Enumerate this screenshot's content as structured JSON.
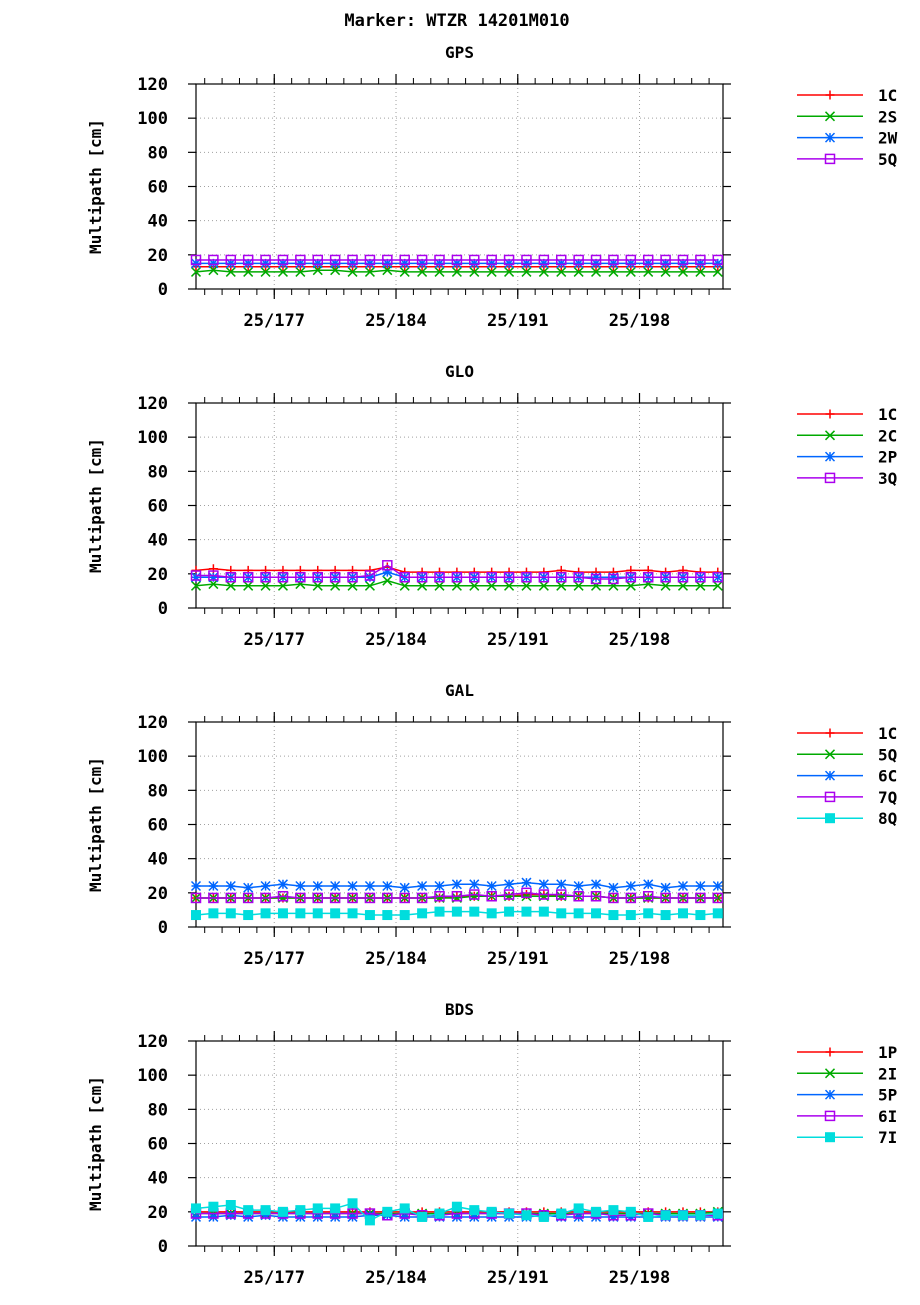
{
  "title": "Marker: WTZR 14201M010",
  "chart_data": [
    {
      "type": "line",
      "title": "GPS",
      "ylabel": "Multipath [cm]",
      "ylim": [
        0,
        120
      ],
      "yticks": [
        0,
        20,
        40,
        60,
        80,
        100,
        120
      ],
      "xlim": [
        172.5,
        202.8
      ],
      "xticks": [
        {
          "x": 177,
          "label": "25/177"
        },
        {
          "x": 184,
          "label": "25/184"
        },
        {
          "x": 191,
          "label": "25/191"
        },
        {
          "x": 198,
          "label": "25/198"
        }
      ],
      "grid": true,
      "legend_position": "right",
      "x": [
        172.5,
        173.5,
        174.5,
        175.5,
        176.5,
        177.5,
        178.5,
        179.5,
        180.5,
        181.5,
        182.5,
        183.5,
        184.5,
        185.5,
        186.5,
        187.5,
        188.5,
        189.5,
        190.5,
        191.5,
        192.5,
        193.5,
        194.5,
        195.5,
        196.5,
        197.5,
        198.5,
        199.5,
        200.5,
        201.5,
        202.5
      ],
      "series": [
        {
          "name": "1C",
          "color": "#ff0000",
          "marker": "plus",
          "values": [
            13,
            13,
            13,
            13,
            13,
            13,
            13,
            13,
            13,
            13,
            13,
            13,
            13,
            13,
            13,
            13,
            13,
            13,
            13,
            13,
            13,
            13,
            13,
            13,
            13,
            13,
            13,
            13,
            13,
            13,
            13
          ]
        },
        {
          "name": "2S",
          "color": "#00aa00",
          "marker": "x",
          "values": [
            10,
            11,
            10,
            10,
            10,
            10,
            10,
            11,
            11,
            10,
            10,
            11,
            10,
            10,
            10,
            10,
            10,
            10,
            10,
            10,
            10,
            10,
            10,
            10,
            10,
            10,
            10,
            10,
            10,
            10,
            10
          ]
        },
        {
          "name": "2W",
          "color": "#0066ff",
          "marker": "star",
          "values": [
            15,
            15,
            15,
            15,
            15,
            15,
            15,
            15,
            15,
            15,
            15,
            15,
            15,
            15,
            15,
            15,
            15,
            15,
            15,
            15,
            15,
            15,
            15,
            15,
            15,
            15,
            15,
            15,
            15,
            15,
            15
          ]
        },
        {
          "name": "5Q",
          "color": "#aa00ee",
          "marker": "square",
          "values": [
            17,
            17,
            17,
            17,
            17,
            17,
            17,
            17,
            17,
            17,
            17,
            17,
            17,
            17,
            17,
            17,
            17,
            17,
            17,
            17,
            17,
            17,
            17,
            17,
            17,
            17,
            17,
            17,
            17,
            17,
            17
          ]
        }
      ]
    },
    {
      "type": "line",
      "title": "GLO",
      "ylabel": "Multipath [cm]",
      "ylim": [
        0,
        120
      ],
      "yticks": [
        0,
        20,
        40,
        60,
        80,
        100,
        120
      ],
      "xlim": [
        172.5,
        202.8
      ],
      "xticks": [
        {
          "x": 177,
          "label": "25/177"
        },
        {
          "x": 184,
          "label": "25/184"
        },
        {
          "x": 191,
          "label": "25/191"
        },
        {
          "x": 198,
          "label": "25/198"
        }
      ],
      "grid": true,
      "legend_position": "right",
      "x": [
        172.5,
        173.5,
        174.5,
        175.5,
        176.5,
        177.5,
        178.5,
        179.5,
        180.5,
        181.5,
        182.5,
        183.5,
        184.5,
        185.5,
        186.5,
        187.5,
        188.5,
        189.5,
        190.5,
        191.5,
        192.5,
        193.5,
        194.5,
        195.5,
        196.5,
        197.5,
        198.5,
        199.5,
        200.5,
        201.5,
        202.5
      ],
      "series": [
        {
          "name": "1C",
          "color": "#ff0000",
          "marker": "plus",
          "values": [
            22,
            23,
            22,
            22,
            22,
            22,
            22,
            22,
            22,
            22,
            22,
            24,
            21,
            21,
            21,
            21,
            21,
            21,
            21,
            21,
            21,
            22,
            21,
            21,
            21,
            22,
            22,
            21,
            22,
            21,
            21
          ]
        },
        {
          "name": "2C",
          "color": "#00aa00",
          "marker": "x",
          "values": [
            13,
            14,
            13,
            13,
            13,
            13,
            14,
            13,
            13,
            13,
            13,
            16,
            13,
            13,
            13,
            13,
            13,
            13,
            13,
            13,
            13,
            13,
            13,
            13,
            13,
            13,
            14,
            13,
            13,
            13,
            13
          ]
        },
        {
          "name": "2P",
          "color": "#0066ff",
          "marker": "star",
          "values": [
            18,
            18,
            18,
            18,
            18,
            18,
            18,
            18,
            18,
            18,
            18,
            21,
            18,
            18,
            18,
            18,
            18,
            18,
            18,
            18,
            18,
            18,
            18,
            18,
            18,
            18,
            18,
            18,
            18,
            18,
            18
          ]
        },
        {
          "name": "3Q",
          "color": "#aa00ee",
          "marker": "square",
          "values": [
            19,
            19,
            18,
            18,
            18,
            18,
            18,
            18,
            18,
            18,
            19,
            25,
            18,
            18,
            18,
            18,
            18,
            18,
            18,
            18,
            18,
            18,
            18,
            17,
            17,
            18,
            18,
            18,
            18,
            18,
            18
          ]
        }
      ]
    },
    {
      "type": "line",
      "title": "GAL",
      "ylabel": "Multipath [cm]",
      "ylim": [
        0,
        120
      ],
      "yticks": [
        0,
        20,
        40,
        60,
        80,
        100,
        120
      ],
      "xlim": [
        172.5,
        202.8
      ],
      "xticks": [
        {
          "x": 177,
          "label": "25/177"
        },
        {
          "x": 184,
          "label": "25/184"
        },
        {
          "x": 191,
          "label": "25/191"
        },
        {
          "x": 198,
          "label": "25/198"
        }
      ],
      "grid": true,
      "legend_position": "right",
      "x": [
        172.5,
        173.5,
        174.5,
        175.5,
        176.5,
        177.5,
        178.5,
        179.5,
        180.5,
        181.5,
        182.5,
        183.5,
        184.5,
        185.5,
        186.5,
        187.5,
        188.5,
        189.5,
        190.5,
        191.5,
        192.5,
        193.5,
        194.5,
        195.5,
        196.5,
        197.5,
        198.5,
        199.5,
        200.5,
        201.5,
        202.5
      ],
      "series": [
        {
          "name": "1C",
          "color": "#ff0000",
          "marker": "plus",
          "values": [
            17,
            17,
            17,
            17,
            17,
            17,
            17,
            17,
            17,
            17,
            17,
            17,
            17,
            17,
            17,
            18,
            18,
            18,
            18,
            19,
            19,
            18,
            18,
            18,
            17,
            17,
            17,
            17,
            17,
            17,
            17
          ]
        },
        {
          "name": "5Q",
          "color": "#00aa00",
          "marker": "x",
          "values": [
            17,
            17,
            17,
            17,
            17,
            17,
            17,
            17,
            17,
            17,
            17,
            17,
            17,
            17,
            17,
            17,
            18,
            18,
            18,
            18,
            18,
            18,
            18,
            18,
            17,
            17,
            17,
            17,
            17,
            17,
            17
          ]
        },
        {
          "name": "6C",
          "color": "#0066ff",
          "marker": "star",
          "values": [
            24,
            24,
            24,
            23,
            24,
            25,
            24,
            24,
            24,
            24,
            24,
            24,
            23,
            24,
            24,
            25,
            25,
            24,
            25,
            26,
            25,
            25,
            24,
            25,
            23,
            24,
            25,
            23,
            24,
            24,
            24
          ]
        },
        {
          "name": "7Q",
          "color": "#aa00ee",
          "marker": "square",
          "values": [
            17,
            17,
            17,
            17,
            17,
            18,
            17,
            17,
            17,
            17,
            17,
            17,
            17,
            17,
            18,
            18,
            19,
            18,
            19,
            20,
            19,
            19,
            18,
            18,
            17,
            17,
            18,
            17,
            17,
            17,
            17
          ]
        },
        {
          "name": "8Q",
          "color": "#00dddd",
          "marker": "filled-square",
          "values": [
            7,
            8,
            8,
            7,
            8,
            8,
            8,
            8,
            8,
            8,
            7,
            7,
            7,
            8,
            9,
            9,
            9,
            8,
            9,
            9,
            9,
            8,
            8,
            8,
            7,
            7,
            8,
            7,
            8,
            7,
            8
          ]
        }
      ]
    },
    {
      "type": "line",
      "title": "BDS",
      "ylabel": "Multipath [cm]",
      "ylim": [
        0,
        120
      ],
      "yticks": [
        0,
        20,
        40,
        60,
        80,
        100,
        120
      ],
      "xlim": [
        172.5,
        202.8
      ],
      "xticks": [
        {
          "x": 177,
          "label": "25/177"
        },
        {
          "x": 184,
          "label": "25/184"
        },
        {
          "x": 191,
          "label": "25/191"
        },
        {
          "x": 198,
          "label": "25/198"
        }
      ],
      "grid": true,
      "legend_position": "right",
      "x": [
        172.5,
        173.5,
        174.5,
        175.5,
        176.5,
        177.5,
        178.5,
        179.5,
        180.5,
        181.5,
        182.5,
        183.5,
        184.5,
        185.5,
        186.5,
        187.5,
        188.5,
        189.5,
        190.5,
        191.5,
        192.5,
        193.5,
        194.5,
        195.5,
        196.5,
        197.5,
        198.5,
        199.5,
        200.5,
        201.5,
        202.5
      ],
      "series": [
        {
          "name": "1P",
          "color": "#ff0000",
          "marker": "plus",
          "values": [
            20,
            20,
            20,
            20,
            20,
            20,
            20,
            20,
            20,
            20,
            20,
            20,
            20,
            20,
            20,
            20,
            20,
            20,
            20,
            20,
            20,
            20,
            20,
            20,
            20,
            20,
            20,
            20,
            20,
            20,
            20
          ]
        },
        {
          "name": "2I",
          "color": "#00aa00",
          "marker": "x",
          "values": [
            19,
            19,
            19,
            19,
            19,
            19,
            19,
            19,
            19,
            19,
            19,
            19,
            19,
            19,
            19,
            19,
            19,
            19,
            19,
            19,
            19,
            19,
            19,
            19,
            19,
            19,
            19,
            19,
            19,
            19,
            20
          ]
        },
        {
          "name": "5P",
          "color": "#0066ff",
          "marker": "star",
          "values": [
            17,
            17,
            18,
            17,
            18,
            17,
            17,
            17,
            17,
            17,
            18,
            18,
            17,
            17,
            17,
            17,
            17,
            17,
            17,
            17,
            18,
            17,
            17,
            17,
            17,
            17,
            17,
            17,
            17,
            17,
            17
          ]
        },
        {
          "name": "6I",
          "color": "#aa00ee",
          "marker": "square",
          "values": [
            19,
            19,
            19,
            19,
            19,
            19,
            19,
            19,
            19,
            19,
            19,
            18,
            19,
            18,
            18,
            19,
            19,
            19,
            19,
            19,
            18,
            18,
            19,
            19,
            18,
            18,
            19,
            18,
            18,
            18,
            18
          ]
        },
        {
          "name": "7I",
          "color": "#00dddd",
          "marker": "filled-square",
          "values": [
            22,
            23,
            24,
            21,
            21,
            20,
            21,
            22,
            22,
            25,
            15,
            20,
            22,
            17,
            19,
            23,
            21,
            20,
            19,
            18,
            17,
            19,
            22,
            20,
            21,
            20,
            17,
            18,
            18,
            18,
            19
          ]
        }
      ]
    }
  ]
}
